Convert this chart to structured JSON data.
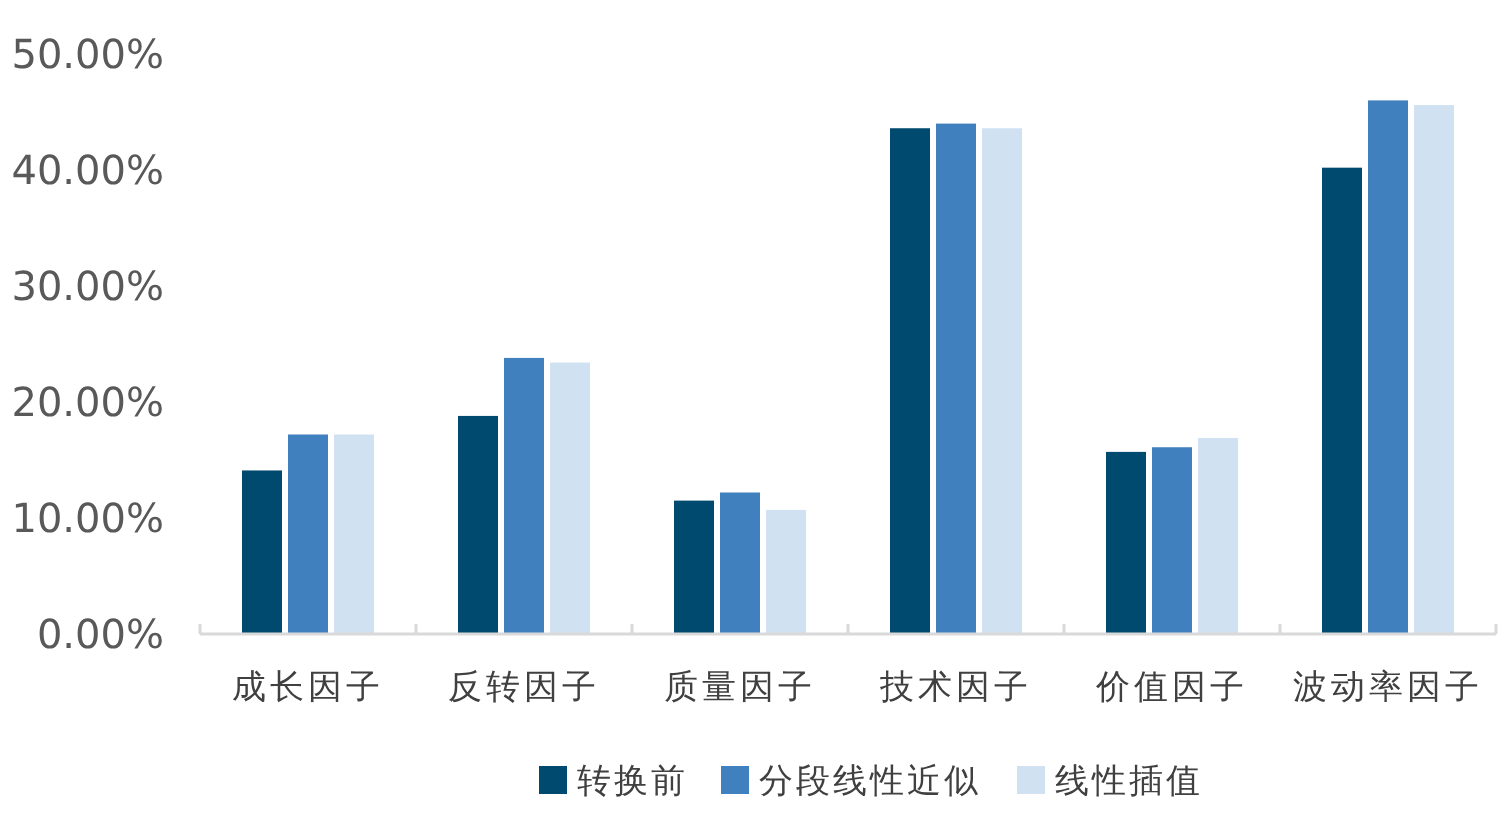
{
  "chart_data": {
    "type": "bar",
    "categories": [
      "成长因子",
      "反转因子",
      "质量因子",
      "技术因子",
      "价值因子",
      "波动率因子"
    ],
    "series": [
      {
        "name": "转换前",
        "color": "#004a6f",
        "values": [
          14.1,
          18.8,
          11.5,
          43.6,
          15.7,
          40.2
        ]
      },
      {
        "name": "分段线性近似",
        "color": "#4180be",
        "values": [
          17.2,
          23.8,
          12.2,
          44.0,
          16.1,
          46.0
        ]
      },
      {
        "name": "线性插值",
        "color": "#d0e1f2",
        "values": [
          17.2,
          23.4,
          10.7,
          43.6,
          16.9,
          45.6
        ]
      }
    ],
    "ylim": [
      0,
      50
    ],
    "yticks": [
      {
        "value": 0,
        "label": "0.00%"
      },
      {
        "value": 10,
        "label": "10.00%"
      },
      {
        "value": 20,
        "label": "20.00%"
      },
      {
        "value": 30,
        "label": "30.00%"
      },
      {
        "value": 40,
        "label": "40.00%"
      },
      {
        "value": 50,
        "label": "50.00%"
      }
    ],
    "grid": false,
    "legend": "bottom"
  }
}
